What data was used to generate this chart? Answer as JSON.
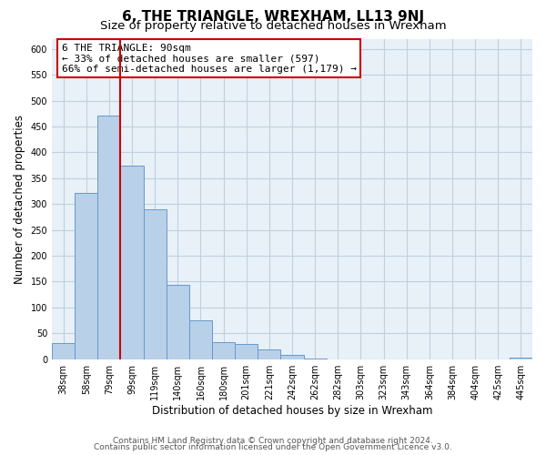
{
  "title": "6, THE TRIANGLE, WREXHAM, LL13 9NJ",
  "subtitle": "Size of property relative to detached houses in Wrexham",
  "xlabel": "Distribution of detached houses by size in Wrexham",
  "ylabel": "Number of detached properties",
  "categories": [
    "38sqm",
    "58sqm",
    "79sqm",
    "99sqm",
    "119sqm",
    "140sqm",
    "160sqm",
    "180sqm",
    "201sqm",
    "221sqm",
    "242sqm",
    "262sqm",
    "282sqm",
    "303sqm",
    "323sqm",
    "343sqm",
    "364sqm",
    "384sqm",
    "404sqm",
    "425sqm",
    "445sqm"
  ],
  "values": [
    32,
    322,
    472,
    375,
    290,
    143,
    76,
    33,
    30,
    18,
    8,
    1,
    0,
    0,
    0,
    0,
    0,
    0,
    0,
    0,
    3
  ],
  "bar_color": "#b8d0e8",
  "bar_edge_color": "#6699cc",
  "vline_color": "#cc0000",
  "vline_x_index": 2.5,
  "annotation_text": "6 THE TRIANGLE: 90sqm\n← 33% of detached houses are smaller (597)\n66% of semi-detached houses are larger (1,179) →",
  "annotation_box_color": "#ffffff",
  "annotation_box_edge": "#cc0000",
  "ylim": [
    0,
    620
  ],
  "yticks": [
    0,
    50,
    100,
    150,
    200,
    250,
    300,
    350,
    400,
    450,
    500,
    550,
    600
  ],
  "footer1": "Contains HM Land Registry data © Crown copyright and database right 2024.",
  "footer2": "Contains public sector information licensed under the Open Government Licence v3.0.",
  "bg_color": "#ffffff",
  "plot_bg_color": "#e8f0f8",
  "grid_color": "#c0d0e0",
  "title_fontsize": 11,
  "subtitle_fontsize": 9.5,
  "tick_fontsize": 7,
  "ylabel_fontsize": 8.5,
  "xlabel_fontsize": 8.5,
  "footer_fontsize": 6.5
}
